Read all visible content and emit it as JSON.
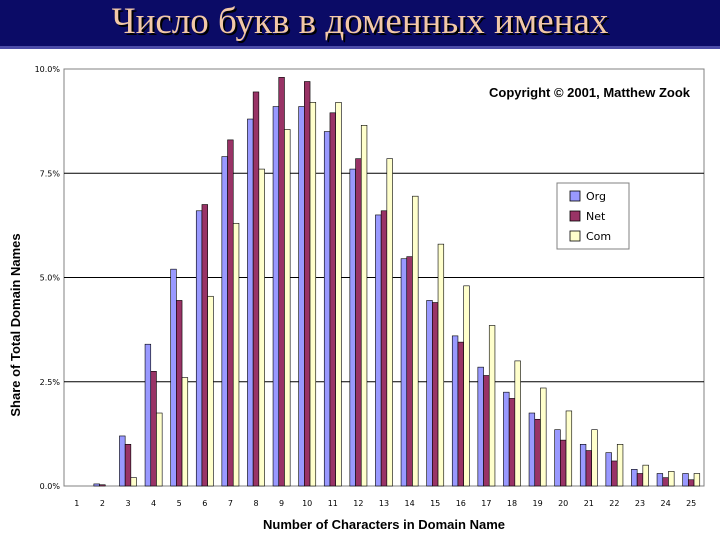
{
  "slide": {
    "title": "Число букв в доменных именах"
  },
  "chart_data": {
    "type": "bar",
    "title": "",
    "annotation": "Copyright © 2001, Matthew Zook",
    "xlabel": "Number of Characters in Domain Name",
    "ylabel": "Share of Total Domain Names",
    "ylim": [
      0,
      10
    ],
    "y_ticks": [
      "0.0%",
      "2.5%",
      "5.0%",
      "7.5%",
      "10.0%"
    ],
    "y_tick_values": [
      0,
      2.5,
      5,
      7.5,
      10
    ],
    "grid": true,
    "legend_position": "right",
    "categories": [
      "1",
      "2",
      "3",
      "4",
      "5",
      "6",
      "7",
      "8",
      "9",
      "10",
      "11",
      "12",
      "13",
      "14",
      "15",
      "16",
      "17",
      "18",
      "19",
      "20",
      "21",
      "22",
      "23",
      "24",
      "25"
    ],
    "series": [
      {
        "name": "Org",
        "color": "#9999ff",
        "values": [
          0,
          0.05,
          1.2,
          3.4,
          5.2,
          6.6,
          7.9,
          8.8,
          9.1,
          9.1,
          8.5,
          7.6,
          6.5,
          5.45,
          4.45,
          3.6,
          2.85,
          2.25,
          1.75,
          1.35,
          1.0,
          0.8,
          0.4,
          0.3,
          0.3
        ]
      },
      {
        "name": "Net",
        "color": "#993366",
        "values": [
          0,
          0.03,
          1.0,
          2.75,
          4.45,
          6.75,
          8.3,
          9.45,
          9.8,
          9.7,
          8.95,
          7.85,
          6.6,
          5.5,
          4.4,
          3.45,
          2.65,
          2.1,
          1.6,
          1.1,
          0.85,
          0.6,
          0.3,
          0.2,
          0.15
        ]
      },
      {
        "name": "Com",
        "color": "#ffffcc",
        "values": [
          0,
          0,
          0.2,
          1.75,
          2.6,
          4.55,
          6.3,
          7.6,
          8.55,
          9.2,
          9.2,
          8.65,
          7.85,
          6.95,
          5.8,
          4.8,
          3.85,
          3.0,
          2.35,
          1.8,
          1.35,
          1.0,
          0.5,
          0.35,
          0.3
        ]
      }
    ]
  }
}
